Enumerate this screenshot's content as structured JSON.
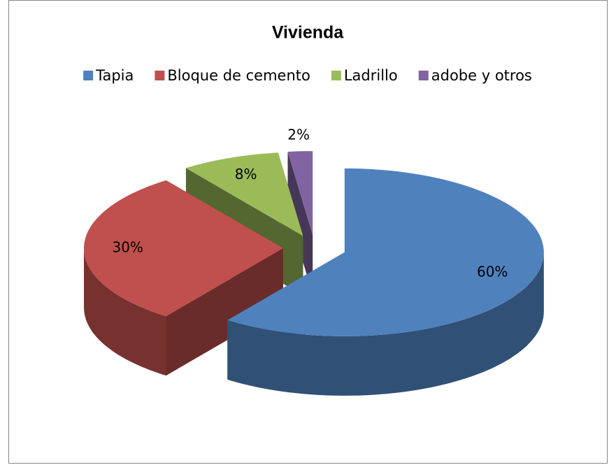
{
  "chart_data": {
    "type": "pie",
    "title": "Vivienda",
    "categories": [
      "Tapia",
      "Bloque de cemento",
      "Ladrillo",
      "adobe y otros"
    ],
    "values": [
      60,
      30,
      8,
      2
    ],
    "value_labels": [
      "60%",
      "30%",
      "8%",
      "2%"
    ],
    "colors": [
      "#4f81bd",
      "#c0504d",
      "#9bbb59",
      "#8064a2"
    ],
    "legend": "top"
  }
}
